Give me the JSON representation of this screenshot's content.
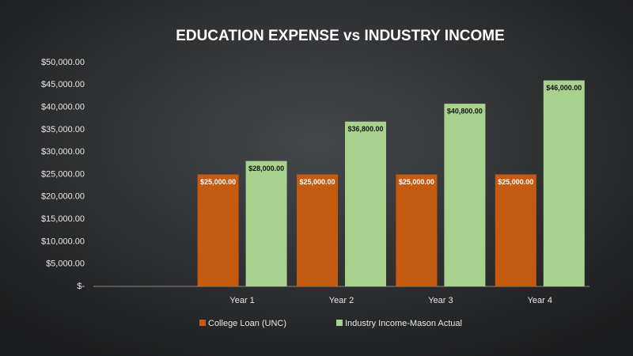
{
  "chart_data": {
    "type": "bar",
    "title": "EDUCATION EXPENSE vs INDUSTRY INCOME",
    "categories": [
      null,
      "Year 1",
      "Year 2",
      "Year 3",
      "Year 4"
    ],
    "series": [
      {
        "name": "College Loan (UNC)",
        "color": "#c55a11",
        "values": [
          null,
          25000,
          25000,
          25000,
          25000
        ],
        "value_labels": [
          null,
          "$25,000.00",
          "$25,000.00",
          "$25,000.00",
          "$25,000.00"
        ]
      },
      {
        "name": "Industry Income-Mason Actual",
        "color": "#a9d18e",
        "values": [
          null,
          28000,
          36800,
          40800,
          46000
        ],
        "value_labels": [
          null,
          "$28,000.00",
          "$36,800.00",
          "$40,800.00",
          "$46,000.00"
        ]
      }
    ],
    "ylim": [
      0,
      50000
    ],
    "yticks": [
      {
        "value": 0,
        "label": "$-"
      },
      {
        "value": 5000,
        "label": "$5,000.00"
      },
      {
        "value": 10000,
        "label": "$10,000.00"
      },
      {
        "value": 15000,
        "label": "$15,000.00"
      },
      {
        "value": 20000,
        "label": "$20,000.00"
      },
      {
        "value": 25000,
        "label": "$25,000.00"
      },
      {
        "value": 30000,
        "label": "$30,000.00"
      },
      {
        "value": 35000,
        "label": "$35,000.00"
      },
      {
        "value": 40000,
        "label": "$40,000.00"
      },
      {
        "value": 45000,
        "label": "$45,000.00"
      },
      {
        "value": 50000,
        "label": "$50,000.00"
      }
    ],
    "grid": false,
    "legend": "bottom"
  }
}
